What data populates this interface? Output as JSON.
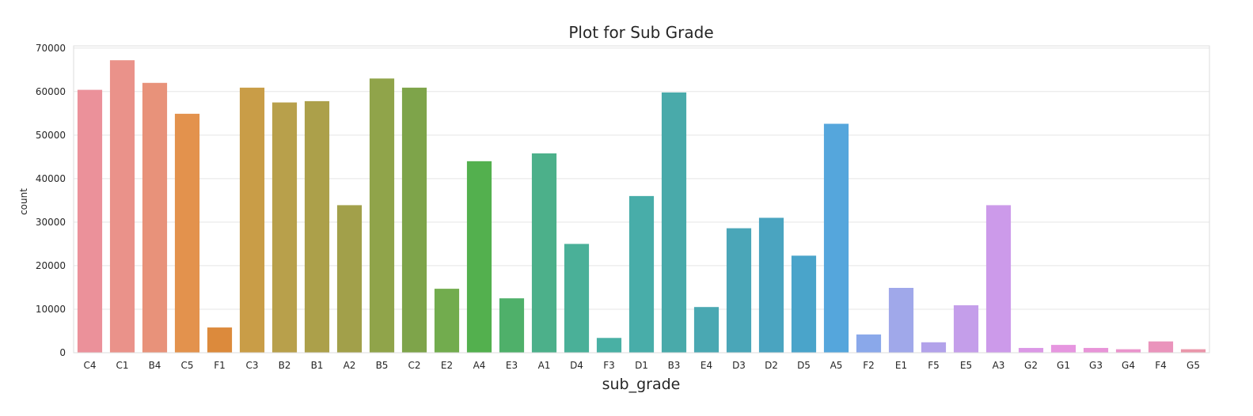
{
  "chart_data": {
    "type": "bar",
    "title": "Plot for Sub Grade",
    "xlabel": "sub_grade",
    "ylabel": "count",
    "ylim": [
      0,
      70500
    ],
    "yticks": [
      0,
      10000,
      20000,
      30000,
      40000,
      50000,
      60000,
      70000
    ],
    "grid": true,
    "categories": [
      "C4",
      "C1",
      "B4",
      "C5",
      "F1",
      "C3",
      "B2",
      "B1",
      "A2",
      "B5",
      "C2",
      "E2",
      "A4",
      "E3",
      "A1",
      "D4",
      "F3",
      "D1",
      "B3",
      "E4",
      "D3",
      "D2",
      "D5",
      "A5",
      "F2",
      "E1",
      "F5",
      "E5",
      "A3",
      "G2",
      "G1",
      "G3",
      "G4",
      "F4",
      "G5"
    ],
    "values": [
      60400,
      67200,
      62000,
      54900,
      5800,
      60900,
      57500,
      57800,
      33900,
      63000,
      60900,
      14700,
      44000,
      12500,
      45800,
      25000,
      3400,
      36000,
      59800,
      10500,
      28600,
      31000,
      22300,
      52600,
      4200,
      14900,
      2400,
      10900,
      33900,
      1100,
      1800,
      1100,
      800,
      2600,
      800
    ],
    "colors": [
      "#eb919a",
      "#ea928a",
      "#e8927a",
      "#e3924d",
      "#dc8a3c",
      "#c99d47",
      "#b8a04b",
      "#aca04a",
      "#a2a04a",
      "#90a44a",
      "#7ea44a",
      "#72ac4e",
      "#53b04e",
      "#4fb06a",
      "#4cb08a",
      "#4ab098",
      "#49b0a4",
      "#48ada9",
      "#49aaaa",
      "#4aa8b2",
      "#4aa6b8",
      "#4aa4c0",
      "#4aa4ca",
      "#55a6dc",
      "#8aa8ea",
      "#a0a8ea",
      "#b2a2ea",
      "#c49eea",
      "#cc9aea",
      "#db98e6",
      "#e696e0",
      "#e894d8",
      "#ea94cc",
      "#ea94bc",
      "#ea96aa"
    ]
  }
}
